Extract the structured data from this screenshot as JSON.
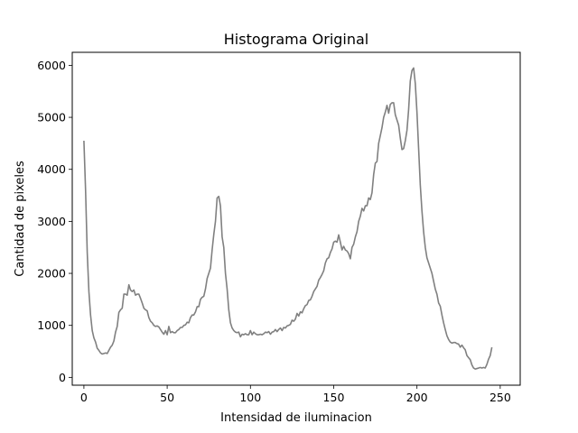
{
  "chart_data": {
    "type": "line",
    "title": "Histograma Original",
    "xlabel": "Intensidad de iluminacion",
    "ylabel": "Cantidad de pixeles",
    "xlim": [
      -7,
      262
    ],
    "ylim": [
      -150,
      6250
    ],
    "xticks": [
      0,
      50,
      100,
      150,
      200,
      250
    ],
    "yticks": [
      0,
      1000,
      2000,
      3000,
      4000,
      5000,
      6000
    ],
    "grid": false,
    "series": [
      {
        "color": "#808080",
        "points": [
          [
            0,
            4550
          ],
          [
            1,
            3600
          ],
          [
            2,
            2400
          ],
          [
            3,
            1650
          ],
          [
            4,
            1200
          ],
          [
            5,
            900
          ],
          [
            6,
            760
          ],
          [
            7,
            680
          ],
          [
            8,
            560
          ],
          [
            9,
            520
          ],
          [
            10,
            470
          ],
          [
            11,
            450
          ],
          [
            12,
            460
          ],
          [
            13,
            470
          ],
          [
            14,
            460
          ],
          [
            15,
            520
          ],
          [
            16,
            580
          ],
          [
            17,
            620
          ],
          [
            18,
            700
          ],
          [
            19,
            870
          ],
          [
            20,
            980
          ],
          [
            21,
            1250
          ],
          [
            22,
            1300
          ],
          [
            23,
            1330
          ],
          [
            24,
            1600
          ],
          [
            25,
            1600
          ],
          [
            26,
            1580
          ],
          [
            27,
            1780
          ],
          [
            28,
            1680
          ],
          [
            29,
            1650
          ],
          [
            30,
            1680
          ],
          [
            31,
            1580
          ],
          [
            32,
            1600
          ],
          [
            33,
            1600
          ],
          [
            34,
            1520
          ],
          [
            35,
            1430
          ],
          [
            36,
            1330
          ],
          [
            37,
            1300
          ],
          [
            38,
            1280
          ],
          [
            39,
            1150
          ],
          [
            40,
            1080
          ],
          [
            41,
            1050
          ],
          [
            42,
            1000
          ],
          [
            43,
            980
          ],
          [
            44,
            990
          ],
          [
            45,
            970
          ],
          [
            46,
            920
          ],
          [
            47,
            870
          ],
          [
            48,
            830
          ],
          [
            49,
            900
          ],
          [
            50,
            820
          ],
          [
            51,
            980
          ],
          [
            52,
            860
          ],
          [
            53,
            880
          ],
          [
            54,
            860
          ],
          [
            55,
            860
          ],
          [
            56,
            900
          ],
          [
            57,
            920
          ],
          [
            58,
            960
          ],
          [
            59,
            960
          ],
          [
            60,
            1000
          ],
          [
            61,
            1010
          ],
          [
            62,
            1060
          ],
          [
            63,
            1050
          ],
          [
            64,
            1150
          ],
          [
            65,
            1200
          ],
          [
            66,
            1200
          ],
          [
            67,
            1260
          ],
          [
            68,
            1360
          ],
          [
            69,
            1360
          ],
          [
            70,
            1500
          ],
          [
            71,
            1540
          ],
          [
            72,
            1560
          ],
          [
            73,
            1700
          ],
          [
            74,
            1900
          ],
          [
            75,
            2000
          ],
          [
            76,
            2100
          ],
          [
            77,
            2450
          ],
          [
            78,
            2750
          ],
          [
            79,
            3000
          ],
          [
            80,
            3450
          ],
          [
            81,
            3480
          ],
          [
            82,
            3300
          ],
          [
            83,
            2700
          ],
          [
            84,
            2500
          ],
          [
            85,
            2000
          ],
          [
            86,
            1700
          ],
          [
            87,
            1300
          ],
          [
            88,
            1050
          ],
          [
            89,
            950
          ],
          [
            90,
            900
          ],
          [
            91,
            870
          ],
          [
            92,
            860
          ],
          [
            93,
            870
          ],
          [
            94,
            780
          ],
          [
            95,
            830
          ],
          [
            96,
            820
          ],
          [
            97,
            840
          ],
          [
            98,
            820
          ],
          [
            99,
            820
          ],
          [
            100,
            900
          ],
          [
            101,
            820
          ],
          [
            102,
            870
          ],
          [
            103,
            840
          ],
          [
            104,
            820
          ],
          [
            105,
            820
          ],
          [
            106,
            830
          ],
          [
            107,
            820
          ],
          [
            108,
            840
          ],
          [
            109,
            870
          ],
          [
            110,
            860
          ],
          [
            111,
            880
          ],
          [
            112,
            830
          ],
          [
            113,
            870
          ],
          [
            114,
            880
          ],
          [
            115,
            920
          ],
          [
            116,
            880
          ],
          [
            117,
            920
          ],
          [
            118,
            950
          ],
          [
            119,
            900
          ],
          [
            120,
            960
          ],
          [
            121,
            950
          ],
          [
            122,
            990
          ],
          [
            123,
            1000
          ],
          [
            124,
            1020
          ],
          [
            125,
            1100
          ],
          [
            126,
            1080
          ],
          [
            127,
            1120
          ],
          [
            128,
            1230
          ],
          [
            129,
            1180
          ],
          [
            130,
            1260
          ],
          [
            131,
            1240
          ],
          [
            132,
            1320
          ],
          [
            133,
            1380
          ],
          [
            134,
            1400
          ],
          [
            135,
            1480
          ],
          [
            136,
            1490
          ],
          [
            137,
            1560
          ],
          [
            138,
            1650
          ],
          [
            139,
            1700
          ],
          [
            140,
            1750
          ],
          [
            141,
            1870
          ],
          [
            142,
            1920
          ],
          [
            143,
            1980
          ],
          [
            144,
            2050
          ],
          [
            145,
            2200
          ],
          [
            146,
            2280
          ],
          [
            147,
            2300
          ],
          [
            148,
            2400
          ],
          [
            149,
            2470
          ],
          [
            150,
            2600
          ],
          [
            151,
            2620
          ],
          [
            152,
            2600
          ],
          [
            153,
            2740
          ],
          [
            154,
            2600
          ],
          [
            155,
            2450
          ],
          [
            156,
            2520
          ],
          [
            157,
            2450
          ],
          [
            158,
            2430
          ],
          [
            159,
            2380
          ],
          [
            160,
            2280
          ],
          [
            161,
            2500
          ],
          [
            162,
            2560
          ],
          [
            163,
            2700
          ],
          [
            164,
            2800
          ],
          [
            165,
            3000
          ],
          [
            166,
            3100
          ],
          [
            167,
            3250
          ],
          [
            168,
            3200
          ],
          [
            169,
            3300
          ],
          [
            170,
            3300
          ],
          [
            171,
            3450
          ],
          [
            172,
            3420
          ],
          [
            173,
            3550
          ],
          [
            174,
            3900
          ],
          [
            175,
            4120
          ],
          [
            176,
            4150
          ],
          [
            177,
            4500
          ],
          [
            178,
            4650
          ],
          [
            179,
            4800
          ],
          [
            180,
            5000
          ],
          [
            181,
            5100
          ],
          [
            182,
            5230
          ],
          [
            183,
            5080
          ],
          [
            184,
            5250
          ],
          [
            185,
            5280
          ],
          [
            186,
            5280
          ],
          [
            187,
            5050
          ],
          [
            188,
            4950
          ],
          [
            189,
            4850
          ],
          [
            190,
            4600
          ],
          [
            191,
            4380
          ],
          [
            192,
            4400
          ],
          [
            193,
            4550
          ],
          [
            194,
            4750
          ],
          [
            195,
            5150
          ],
          [
            196,
            5700
          ],
          [
            197,
            5900
          ],
          [
            198,
            5950
          ],
          [
            199,
            5650
          ],
          [
            200,
            5100
          ],
          [
            201,
            4400
          ],
          [
            202,
            3700
          ],
          [
            203,
            3200
          ],
          [
            204,
            2800
          ],
          [
            205,
            2500
          ],
          [
            206,
            2300
          ],
          [
            207,
            2200
          ],
          [
            208,
            2100
          ],
          [
            209,
            2000
          ],
          [
            210,
            1850
          ],
          [
            211,
            1700
          ],
          [
            212,
            1600
          ],
          [
            213,
            1430
          ],
          [
            214,
            1370
          ],
          [
            215,
            1200
          ],
          [
            216,
            1050
          ],
          [
            217,
            920
          ],
          [
            218,
            800
          ],
          [
            219,
            730
          ],
          [
            220,
            680
          ],
          [
            221,
            660
          ],
          [
            222,
            670
          ],
          [
            223,
            670
          ],
          [
            224,
            650
          ],
          [
            225,
            640
          ],
          [
            226,
            580
          ],
          [
            227,
            620
          ],
          [
            228,
            570
          ],
          [
            229,
            530
          ],
          [
            230,
            420
          ],
          [
            231,
            380
          ],
          [
            232,
            340
          ],
          [
            233,
            240
          ],
          [
            234,
            180
          ],
          [
            235,
            160
          ],
          [
            236,
            170
          ],
          [
            237,
            180
          ],
          [
            238,
            190
          ],
          [
            239,
            180
          ],
          [
            240,
            190
          ],
          [
            241,
            180
          ],
          [
            242,
            250
          ],
          [
            243,
            350
          ],
          [
            244,
            420
          ],
          [
            245,
            580
          ]
        ]
      }
    ]
  }
}
